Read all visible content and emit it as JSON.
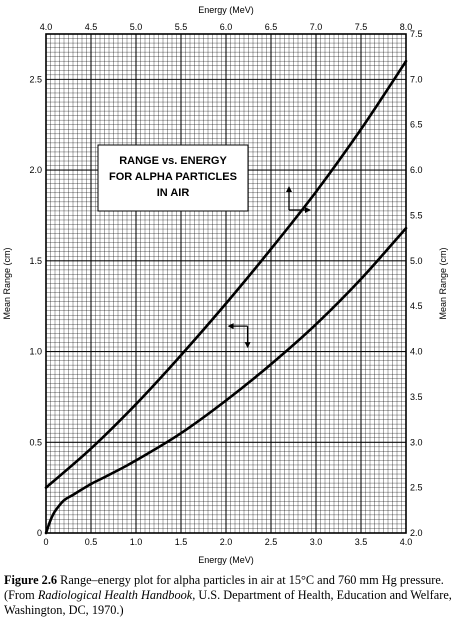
{
  "chart_data": {
    "type": "line",
    "title_lines": [
      "RANGE vs. ENERGY",
      "FOR ALPHA PARTICLES",
      "IN AIR"
    ],
    "x_bottom": {
      "label": "Energy (MeV)",
      "range": [
        0,
        4.0
      ],
      "ticks": [
        "0",
        "0.5",
        "1.0",
        "1.5",
        "2.0",
        "2.5",
        "3.0",
        "3.5",
        "4.0"
      ]
    },
    "x_top": {
      "label": "Energy (MeV)",
      "range": [
        4.0,
        8.0
      ],
      "ticks": [
        "4.0",
        "4.5",
        "5.0",
        "5.5",
        "6.0",
        "6.5",
        "7.0",
        "7.5",
        "8.0"
      ]
    },
    "y_left": {
      "label": "Mean Range (cm)",
      "range": [
        0,
        2.75
      ],
      "ticks": [
        "0",
        "0.5",
        "1.0",
        "1.5",
        "2.0",
        "2.5"
      ]
    },
    "y_right": {
      "label": "Mean Range (cm)",
      "range": [
        2.0,
        7.5
      ],
      "ticks": [
        "2.0",
        "2.5",
        "3.0",
        "3.5",
        "4.0",
        "4.5",
        "5.0",
        "5.5",
        "6.0",
        "6.5",
        "7.0",
        "7.5"
      ]
    },
    "grid": true,
    "series": [
      {
        "axes": "bottom-left",
        "x": [
          0,
          0.05,
          0.1,
          0.2,
          0.3,
          0.5,
          0.7,
          1.0,
          1.5,
          2.0,
          2.5,
          3.0,
          3.5,
          4.0
        ],
        "y": [
          0,
          0.07,
          0.12,
          0.18,
          0.21,
          0.27,
          0.32,
          0.4,
          0.55,
          0.73,
          0.93,
          1.15,
          1.4,
          1.68
        ]
      },
      {
        "axes": "top-right",
        "x": [
          4.0,
          4.5,
          5.0,
          5.5,
          6.0,
          6.5,
          7.0,
          7.5,
          8.0
        ],
        "y": [
          2.5,
          2.93,
          3.42,
          3.96,
          4.53,
          5.13,
          5.76,
          6.45,
          7.2
        ]
      }
    ]
  },
  "caption": {
    "label": "Figure 2.6",
    "text_before": "Range–energy plot for alpha particles in air at 15°C and 760 mm Hg pressure. (From ",
    "source_italic": "Radiological Health Handbook",
    "text_after": ", U.S. Department of Health, Education and Welfare, Washington, DC, 1970.)"
  }
}
